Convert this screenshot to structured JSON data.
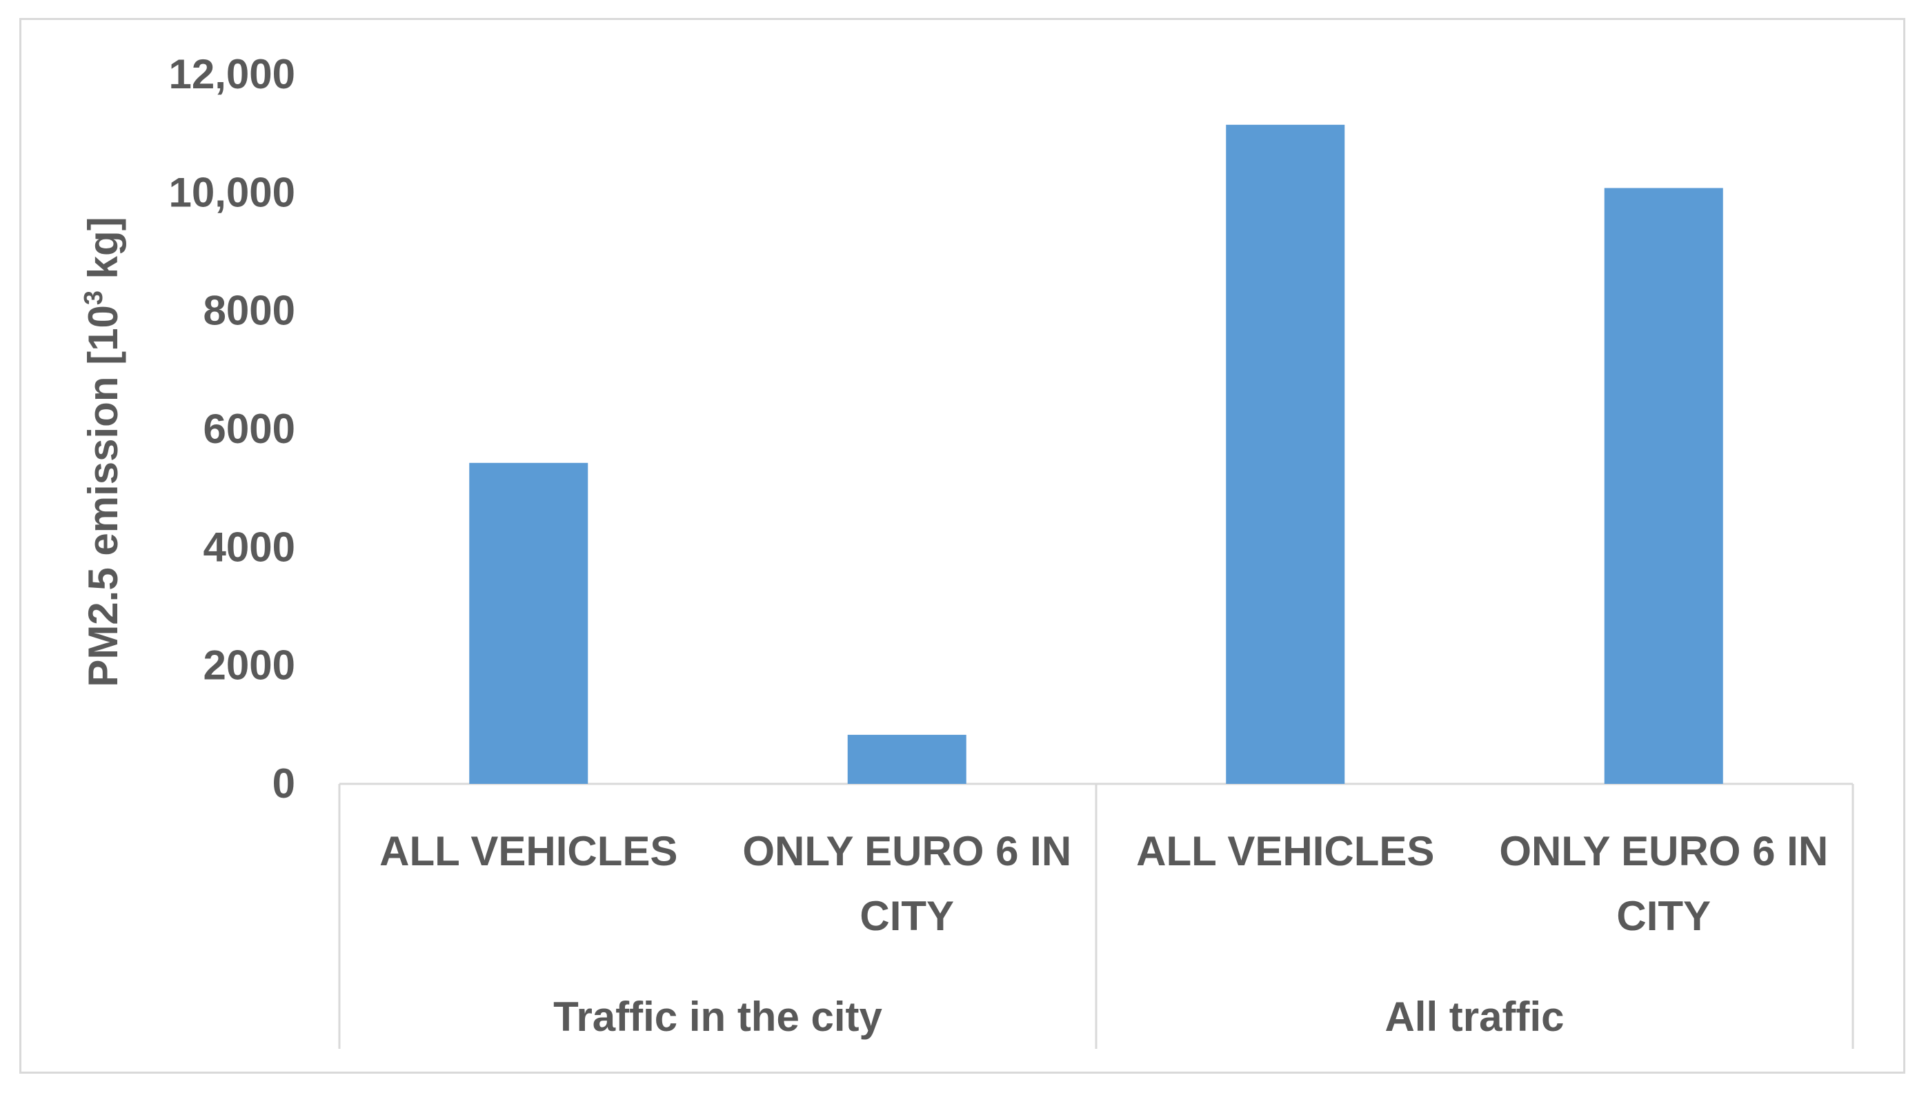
{
  "chart_data": {
    "type": "bar",
    "ylabel_main": "PM2.5 emission [10",
    "ylabel_sup": "3",
    "ylabel_end": " kg]",
    "ylim": [
      0,
      12000
    ],
    "yticks": [
      {
        "value": 0,
        "label": "0"
      },
      {
        "value": 2000,
        "label": "2000"
      },
      {
        "value": 4000,
        "label": "4000"
      },
      {
        "value": 6000,
        "label": "6000"
      },
      {
        "value": 8000,
        "label": "8000"
      },
      {
        "value": 10000,
        "label": "10,000"
      },
      {
        "value": 12000,
        "label": "12,000"
      }
    ],
    "groups": [
      {
        "name": "Traffic in the city",
        "bars": [
          {
            "label_lines": [
              "ALL VEHICLES"
            ],
            "value": 5430
          },
          {
            "label_lines": [
              "ONLY EURO 6 IN",
              "CITY"
            ],
            "value": 830
          }
        ]
      },
      {
        "name": "All traffic",
        "bars": [
          {
            "label_lines": [
              "ALL VEHICLES"
            ],
            "value": 11150
          },
          {
            "label_lines": [
              "ONLY EURO 6 IN",
              "CITY"
            ],
            "value": 10080
          }
        ]
      }
    ],
    "bar_color": "#5b9bd5",
    "grid": false,
    "legend": "none"
  }
}
